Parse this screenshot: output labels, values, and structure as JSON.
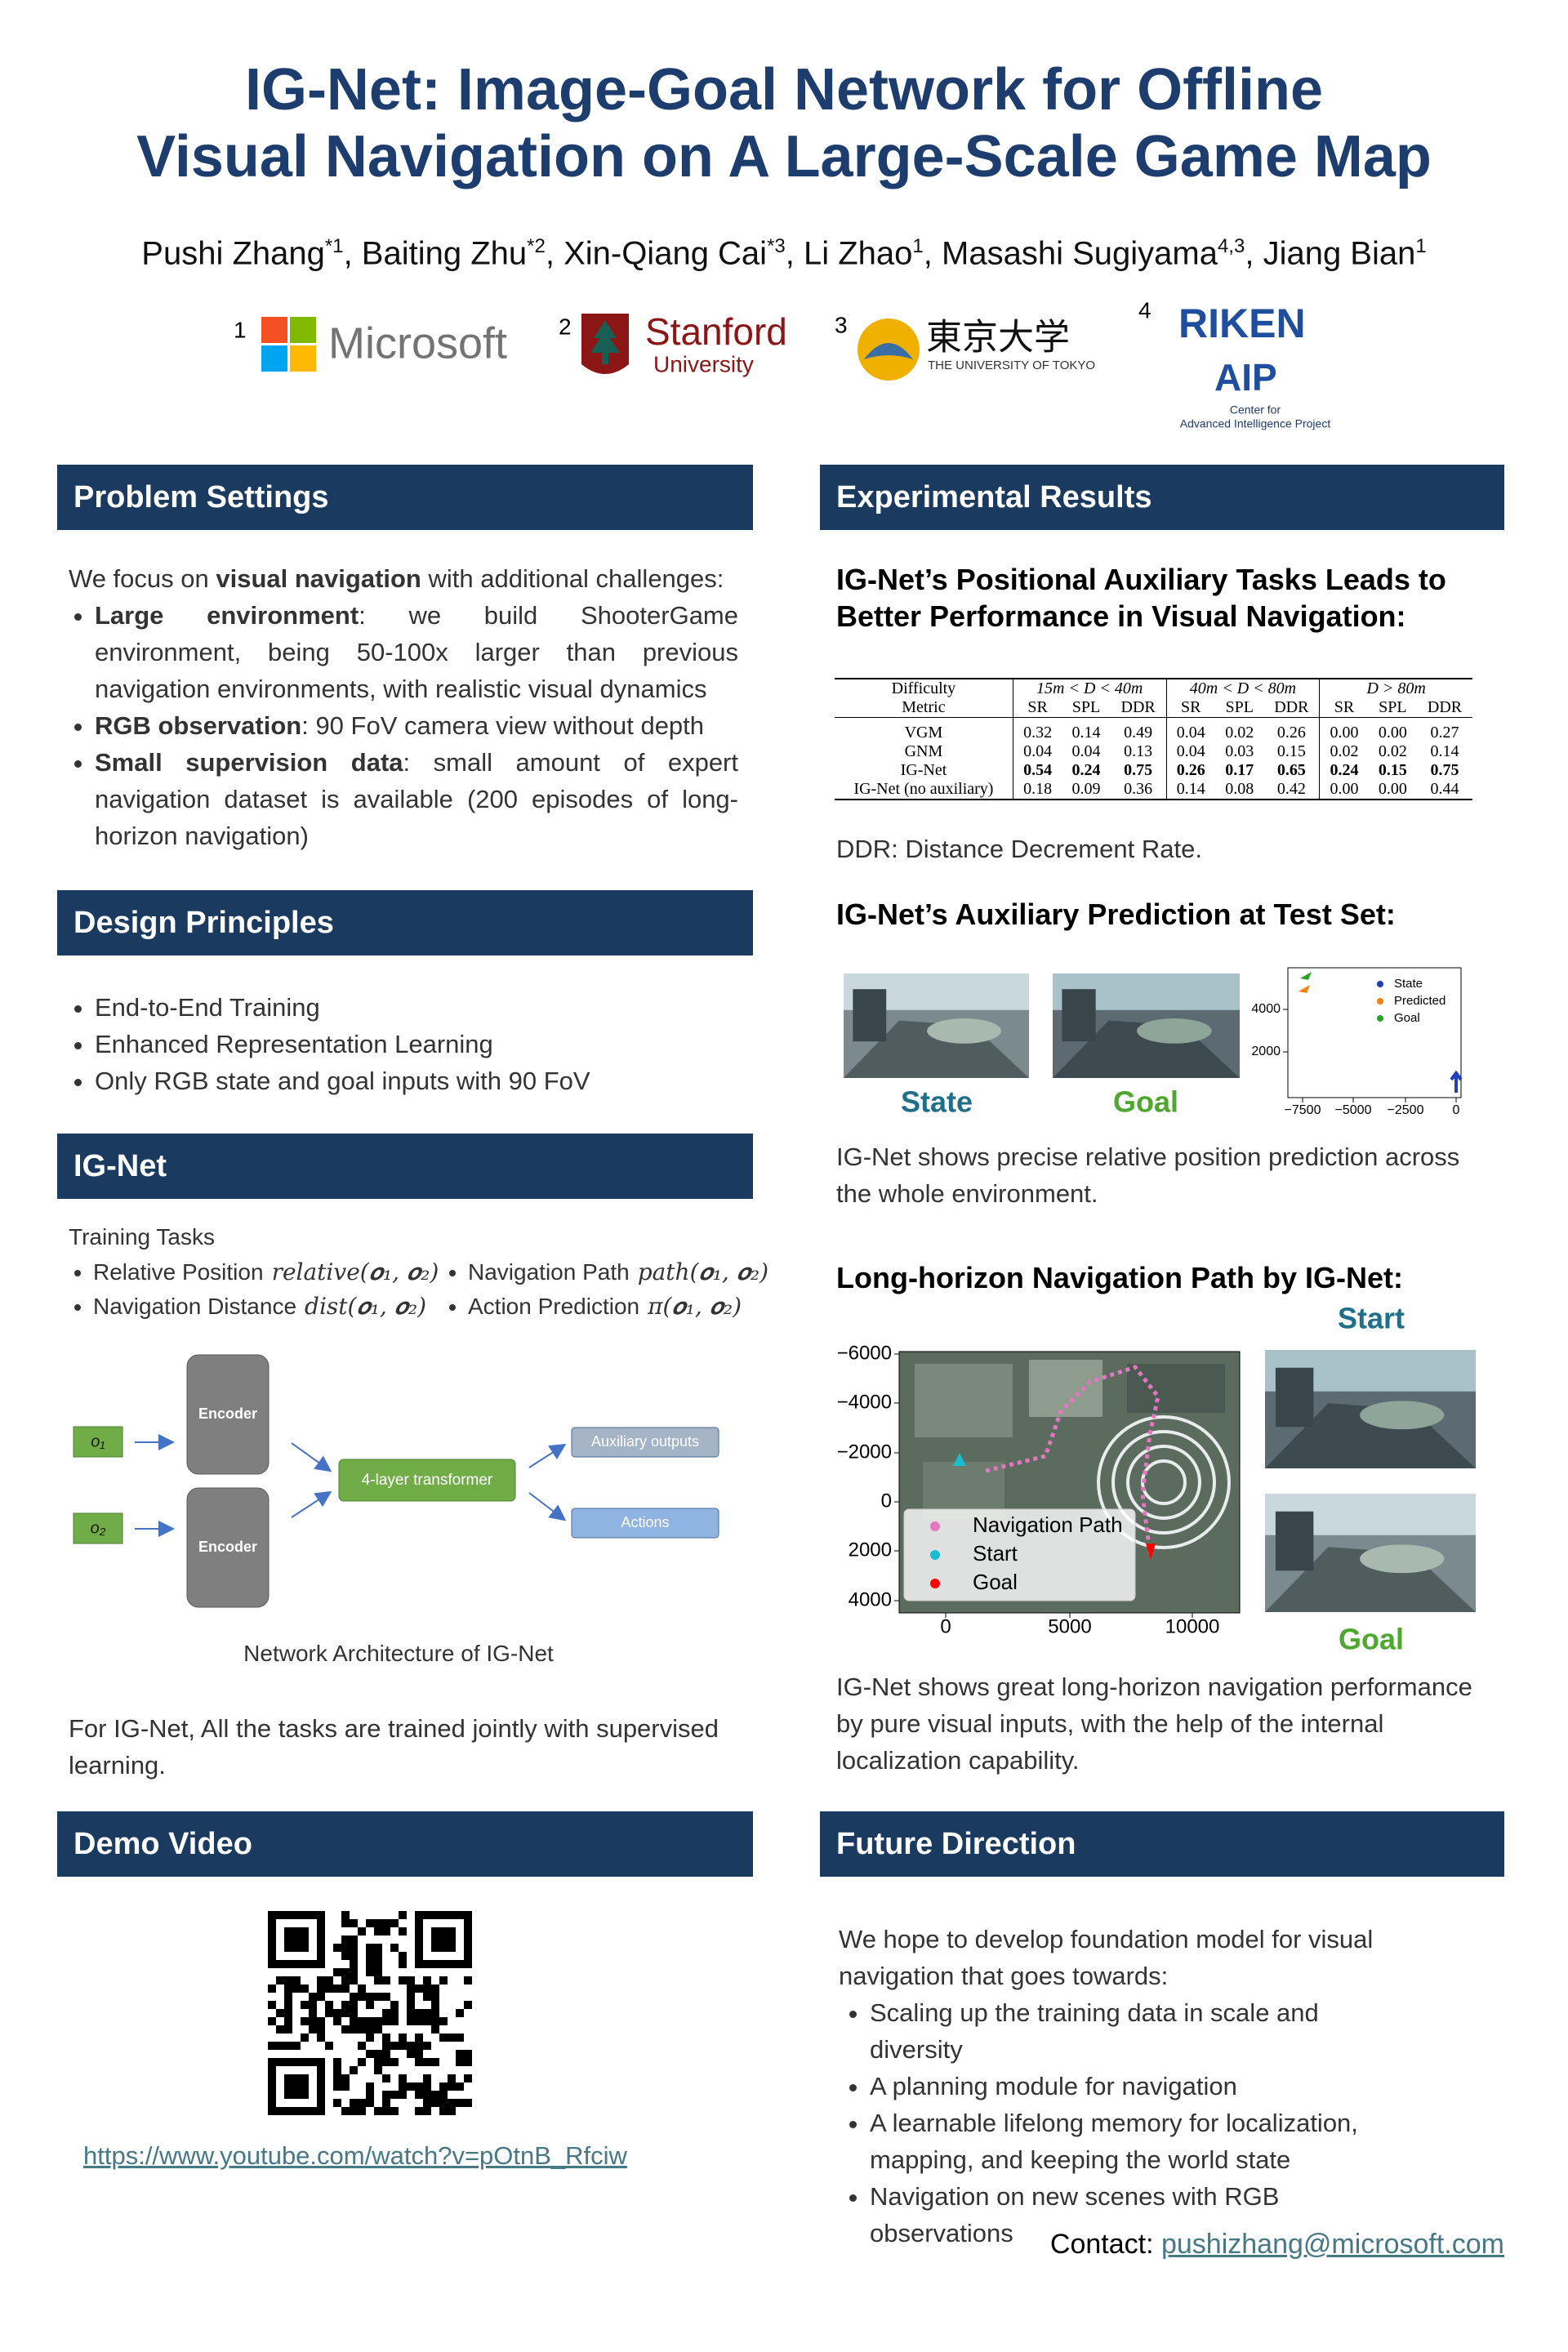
{
  "header": {
    "title": [
      "IG-Net: Image-Goal Network for Offline",
      "Visual Navigation on A Large-Scale Game Map"
    ],
    "authors": [
      {
        "name": "Pushi Zhang",
        "sup": "*1"
      },
      {
        "name": "Baiting Zhu",
        "sup": "*2"
      },
      {
        "name": "Xin-Qiang Cai",
        "sup": "*3"
      },
      {
        "name": "Li Zhao",
        "sup": "1"
      },
      {
        "name": "Masashi Sugiyama",
        "sup": "4,3"
      },
      {
        "name": "Jiang Bian",
        "sup": "1"
      }
    ],
    "author_separator": ", ",
    "affiliations": [
      {
        "number": "1",
        "name": "Microsoft"
      },
      {
        "number": "2",
        "name": "Stanford",
        "sub": "University"
      },
      {
        "number": "3",
        "name": "東京大学",
        "sub": "THE UNIVERSITY OF TOKYO"
      },
      {
        "number": "4",
        "name": "RIKEN",
        "sub": "AIP",
        "lines": [
          "Center for",
          "Advanced Intelligence Project"
        ]
      }
    ]
  },
  "problem_settings": {
    "heading": "Problem Settings",
    "intro": [
      "We focus on ",
      {
        "text": "visual navigation",
        "bold": true
      },
      " with additional challenges:"
    ],
    "bullets": [
      [
        {
          "text": "Large environment",
          "bold": true
        },
        ": we build ShooterGame environment, being 50-100x larger than previous navigation environments, with realistic visual dynamics"
      ],
      [
        {
          "text": "RGB observation",
          "bold": true
        },
        ": 90 FoV camera view without depth"
      ],
      [
        {
          "text": "Small supervision data",
          "bold": true
        },
        ": small amount of expert navigation dataset is available (200 episodes of long-horizon navigation)"
      ]
    ]
  },
  "design_principles": {
    "heading": "Design Principles",
    "bullets": [
      "End-to-End Training",
      "Enhanced Representation Learning",
      "Only RGB state and goal inputs with 90 FoV"
    ]
  },
  "ig_net": {
    "heading": "IG-Net",
    "tasks_label": "Training Tasks",
    "tasks": [
      {
        "name": "Relative Position",
        "math": "relative(𝒐₁, 𝒐₂)"
      },
      {
        "name": "Navigation Distance",
        "math": "dist(𝒐₁, 𝒐₂)"
      },
      {
        "name": "Navigation Path",
        "math": "path(𝒐₁, 𝒐₂)"
      },
      {
        "name": "Action Prediction",
        "math": "π(𝒐₁, 𝒐₂)"
      }
    ],
    "diagram": {
      "inputs": [
        "o₁",
        "o₂"
      ],
      "encoder": "Encoder",
      "transformer": "4-layer transformer",
      "outputs": [
        "Auxiliary outputs",
        "Actions"
      ]
    },
    "caption": "Network Architecture of IG-Net",
    "paragraph": "For IG-Net, All the tasks are trained jointly with supervised learning."
  },
  "demo": {
    "heading": "Demo Video",
    "link": "https://www.youtube.com/watch?v=pOtnB_Rfciw"
  },
  "results": {
    "heading": "Experimental Results",
    "subheading_1": "IG-Net’s Positional Auxiliary Tasks Leads to Better Performance in Visual Navigation:",
    "table": {
      "group_header": [
        "Difficulty",
        "15m < D < 40m",
        "40m < D < 80m",
        "D > 80m"
      ],
      "columns": [
        "Metric",
        "SR",
        "SPL",
        "DDR",
        "SR",
        "SPL",
        "DDR",
        "SR",
        "SPL",
        "DDR"
      ],
      "rows": [
        [
          "VGM",
          "0.32",
          "0.14",
          "0.49",
          "0.04",
          "0.02",
          "0.26",
          "0.00",
          "0.00",
          "0.27"
        ],
        [
          "GNM",
          "0.04",
          "0.04",
          "0.13",
          "0.04",
          "0.03",
          "0.15",
          "0.02",
          "0.02",
          "0.14"
        ],
        [
          "IG-Net",
          "0.54",
          "0.24",
          "0.75",
          "0.26",
          "0.17",
          "0.65",
          "0.24",
          "0.15",
          "0.75"
        ],
        [
          "IG-Net (no auxiliary)",
          "0.18",
          "0.09",
          "0.36",
          "0.14",
          "0.08",
          "0.42",
          "0.00",
          "0.00",
          "0.44"
        ]
      ],
      "bold_row": 2
    },
    "table_note": "DDR: Distance Decrement Rate.",
    "subheading_2": "IG-Net’s Auxiliary Prediction at Test Set:",
    "image_labels": [
      "State",
      "Goal"
    ],
    "scatter_plot": {
      "yticks": [
        "4000",
        "2000"
      ],
      "xticks": [
        "−7500",
        "−5000",
        "−2500",
        "0"
      ],
      "legend": [
        {
          "name": "State",
          "color": "#1f3fbf"
        },
        {
          "name": "Predicted",
          "color": "#ff7f0e"
        },
        {
          "name": "Goal",
          "color": "#2ca02c"
        }
      ]
    },
    "paragraph_1": "IG-Net shows precise relative position prediction across the whole environment.",
    "subheading_3": "Long-horizon Navigation Path by IG-Net:",
    "path_plot": {
      "yticks": [
        "−6000",
        "−4000",
        "−2000",
        "0",
        "2000",
        "4000"
      ],
      "xticks": [
        "0",
        "5000",
        "10000"
      ],
      "legend": [
        {
          "name": "Navigation Path",
          "color": "#e377c2"
        },
        {
          "name": "Start",
          "color": "#17becf"
        },
        {
          "name": "Goal",
          "color": "#ff0000"
        }
      ]
    },
    "path_labels": [
      "Start",
      "Goal"
    ],
    "paragraph_2": "IG-Net shows great long-horizon navigation performance by pure visual inputs, with the help of the internal localization capability."
  },
  "future": {
    "heading": "Future Direction",
    "intro": "We hope to develop foundation model for visual navigation that goes towards:",
    "bullets": [
      "Scaling up the training data in scale and diversity",
      "A planning module for navigation",
      "A learnable lifelong memory for localization, mapping, and keeping the world state",
      "Navigation on new scenes with RGB observations"
    ]
  },
  "contact": {
    "label": "Contact:",
    "email": "pushizhang@microsoft.com"
  }
}
